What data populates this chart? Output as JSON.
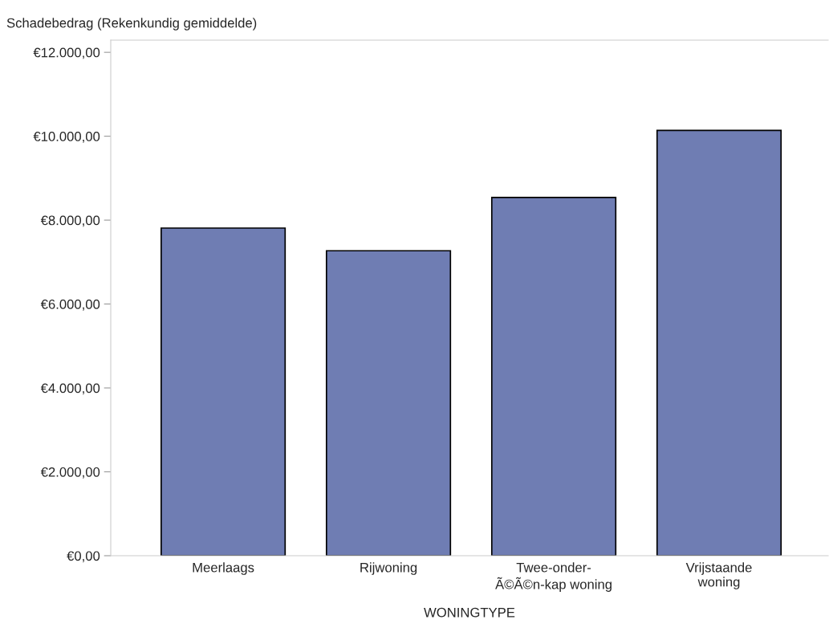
{
  "chart_data": {
    "type": "bar",
    "ylabel": "Schadebedrag (Rekenkundig gemiddelde)",
    "xlabel": "WONINGTYPE",
    "categories": [
      "Meerlaags",
      "Rijwoning",
      "Twee-onder-\nÃ©Ã©n-kap woning",
      "Vrijstaande\nwoning"
    ],
    "values": [
      7810,
      7270,
      8540,
      10140
    ],
    "color": "#6f7db3",
    "ylim": [
      0,
      12290
    ],
    "yticks": [
      {
        "value": 0,
        "label": "€0,00"
      },
      {
        "value": 2000,
        "label": "€2.000,00"
      },
      {
        "value": 4000,
        "label": "€4.000,00"
      },
      {
        "value": 6000,
        "label": "€6.000,00"
      },
      {
        "value": 8000,
        "label": "€8.000,00"
      },
      {
        "value": 10000,
        "label": "€10.000,00"
      },
      {
        "value": 12000,
        "label": "€12.000,00"
      }
    ],
    "grid": false
  }
}
